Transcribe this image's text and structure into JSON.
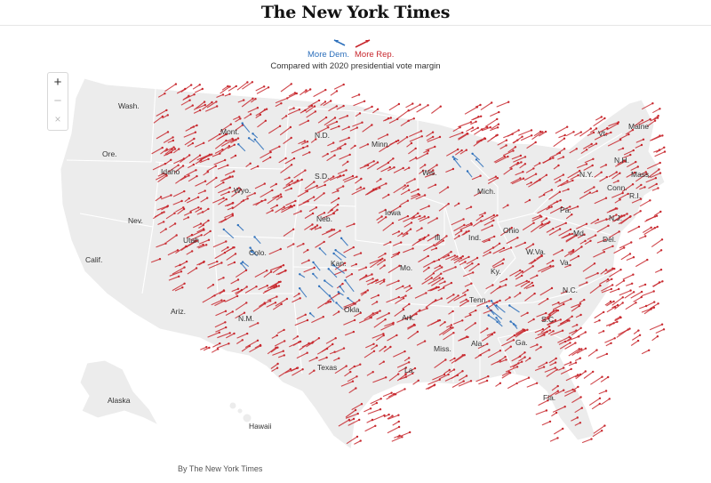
{
  "masthead": {
    "title": "The New York Times"
  },
  "legend": {
    "dem_label": "More Dem.",
    "rep_label": "More Rep.",
    "subtitle": "Compared with 2020 presidential vote margin",
    "dem_color": "#2c6fbb",
    "rep_color": "#c8282e"
  },
  "zoom": {
    "zoom_in": "+",
    "zoom_out": "−",
    "reset": "×"
  },
  "states": [
    "Wash.",
    "Ore.",
    "Calif.",
    "Idaho",
    "Nev.",
    "Utah",
    "Ariz.",
    "Mont.",
    "Wyo.",
    "Colo.",
    "N.M.",
    "N.D.",
    "S.D.",
    "Neb.",
    "Kan.",
    "Okla.",
    "Texas",
    "Minn.",
    "Iowa",
    "Mo.",
    "Ark.",
    "La.",
    "Wis.",
    "Ill.",
    "Mich.",
    "Ind.",
    "Ohio",
    "Ky.",
    "Tenn.",
    "Miss.",
    "Ala.",
    "Ga.",
    "Fla.",
    "S.C.",
    "N.C.",
    "Va.",
    "W.Va.",
    "Md.",
    "Del.",
    "Pa.",
    "N.J.",
    "N.Y.",
    "Conn.",
    "R.I.",
    "Mass.",
    "Vt.",
    "N.H.",
    "Maine",
    "Alaska",
    "Hawaii"
  ],
  "credit": "By The New York Times"
}
